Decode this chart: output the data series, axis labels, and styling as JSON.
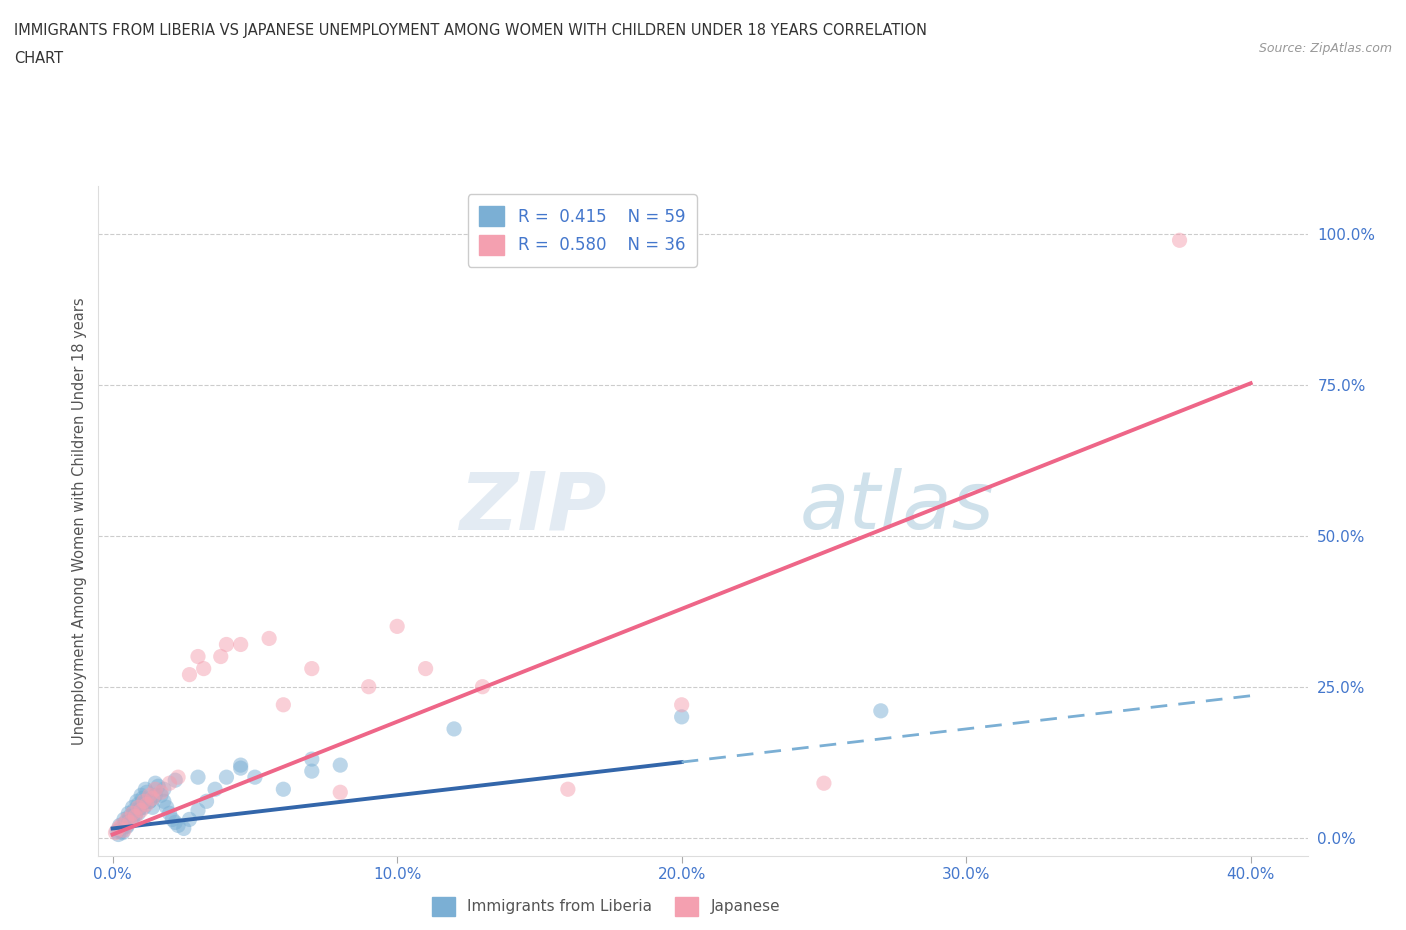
{
  "title_line1": "IMMIGRANTS FROM LIBERIA VS JAPANESE UNEMPLOYMENT AMONG WOMEN WITH CHILDREN UNDER 18 YEARS CORRELATION",
  "title_line2": "CHART",
  "source": "Source: ZipAtlas.com",
  "ylabel": "Unemployment Among Women with Children Under 18 years",
  "x_tick_labels": [
    "0.0%",
    "10.0%",
    "20.0%",
    "30.0%",
    "40.0%"
  ],
  "x_tick_vals": [
    0.0,
    10.0,
    20.0,
    30.0,
    40.0
  ],
  "y_tick_labels": [
    "0.0%",
    "25.0%",
    "50.0%",
    "75.0%",
    "100.0%"
  ],
  "y_tick_vals": [
    0.0,
    25.0,
    50.0,
    75.0,
    100.0
  ],
  "xlim": [
    -0.5,
    42.0
  ],
  "ylim": [
    -3.0,
    108.0
  ],
  "legend1_label": "R =  0.415    N = 59",
  "legend2_label": "R =  0.580    N = 36",
  "legend_bottom_label1": "Immigrants from Liberia",
  "legend_bottom_label2": "Japanese",
  "blue_color": "#7BAFD4",
  "pink_color": "#F4A0B0",
  "blue_line_color": "#3366AA",
  "pink_line_color": "#EE6688",
  "blue_scatter_x": [
    0.15,
    0.2,
    0.25,
    0.3,
    0.35,
    0.4,
    0.45,
    0.5,
    0.55,
    0.6,
    0.65,
    0.7,
    0.75,
    0.8,
    0.85,
    0.9,
    0.95,
    1.0,
    1.05,
    1.1,
    1.15,
    1.2,
    1.3,
    1.4,
    1.5,
    1.6,
    1.7,
    1.8,
    1.9,
    2.0,
    2.1,
    2.2,
    2.3,
    2.5,
    2.7,
    3.0,
    3.3,
    3.6,
    4.0,
    4.5,
    5.0,
    6.0,
    7.0,
    8.0,
    0.3,
    0.5,
    0.7,
    0.9,
    1.1,
    1.3,
    1.5,
    1.8,
    2.2,
    3.0,
    4.5,
    7.0,
    12.0,
    20.0,
    27.0
  ],
  "blue_scatter_y": [
    1.0,
    0.5,
    2.0,
    1.5,
    0.8,
    3.0,
    2.5,
    1.8,
    4.0,
    3.5,
    2.8,
    5.0,
    4.5,
    3.8,
    6.0,
    5.5,
    4.8,
    7.0,
    6.5,
    5.8,
    8.0,
    7.5,
    6.0,
    5.0,
    9.0,
    8.5,
    7.0,
    6.0,
    5.0,
    4.0,
    3.0,
    2.5,
    2.0,
    1.5,
    3.0,
    4.5,
    6.0,
    8.0,
    10.0,
    12.0,
    10.0,
    8.0,
    11.0,
    12.0,
    1.0,
    2.0,
    3.0,
    4.0,
    5.0,
    6.0,
    7.0,
    8.0,
    9.5,
    10.0,
    11.5,
    13.0,
    18.0,
    20.0,
    21.0
  ],
  "pink_scatter_x": [
    0.1,
    0.2,
    0.3,
    0.4,
    0.5,
    0.6,
    0.7,
    0.8,
    0.9,
    1.0,
    1.1,
    1.2,
    1.3,
    1.4,
    1.5,
    1.7,
    2.0,
    2.3,
    2.7,
    3.2,
    3.8,
    4.5,
    5.5,
    7.0,
    9.0,
    10.0,
    11.0,
    13.0,
    16.0,
    20.0,
    25.0,
    3.0,
    4.0,
    6.0,
    8.0,
    37.5
  ],
  "pink_scatter_y": [
    0.8,
    1.5,
    2.0,
    1.2,
    3.0,
    2.5,
    4.0,
    3.5,
    5.0,
    4.5,
    6.0,
    5.5,
    7.0,
    6.5,
    8.0,
    7.5,
    9.0,
    10.0,
    27.0,
    28.0,
    30.0,
    32.0,
    33.0,
    28.0,
    25.0,
    35.0,
    28.0,
    25.0,
    8.0,
    22.0,
    9.0,
    30.0,
    32.0,
    22.0,
    7.5,
    99.0
  ],
  "blue_trend_x_solid_start": 0.0,
  "blue_trend_x_solid_end": 20.0,
  "blue_trend_x_dash_start": 20.0,
  "blue_trend_x_dash_end": 40.0,
  "blue_trend_slope": 0.55,
  "blue_trend_intercept": 1.5,
  "pink_trend_x_start": 0.0,
  "pink_trend_x_end": 40.0,
  "pink_trend_slope": 1.87,
  "pink_trend_intercept": 0.5,
  "watermark_zip_color": "#C8D8E8",
  "watermark_atlas_color": "#A0C4D8"
}
